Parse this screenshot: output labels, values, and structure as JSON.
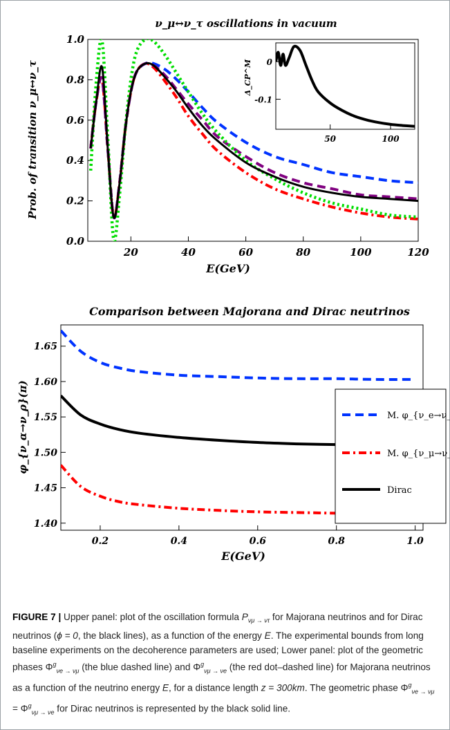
{
  "chart_data": [
    {
      "type": "line",
      "title": "ν_μ↔ν_τ oscillations in vacuum",
      "xlabel": "E(GeV)",
      "ylabel": "Prob. of transition ν_μ↔ν_τ",
      "xlim": [
        5,
        120
      ],
      "ylim": [
        0,
        1
      ],
      "xticks": [
        "20",
        "40",
        "60",
        "80",
        "100",
        "120"
      ],
      "yticks": [
        "0.0",
        "0.2",
        "0.4",
        "0.6",
        "0.8",
        "1.0"
      ],
      "grid": false,
      "series": [
        {
          "color": "#0033ff",
          "style": "dashed",
          "x": [
            6,
            8,
            10,
            12,
            14,
            16,
            18,
            20,
            22,
            25,
            28,
            32,
            36,
            40,
            45,
            50,
            60,
            70,
            80,
            90,
            100,
            110,
            120
          ],
          "y": [
            0.46,
            0.7,
            0.8,
            0.45,
            0.12,
            0.28,
            0.55,
            0.74,
            0.84,
            0.88,
            0.88,
            0.85,
            0.8,
            0.74,
            0.66,
            0.59,
            0.49,
            0.42,
            0.38,
            0.34,
            0.32,
            0.3,
            0.29
          ]
        },
        {
          "color": "#ff0000",
          "style": "dashdot",
          "x": [
            6,
            8,
            10,
            12,
            14,
            16,
            18,
            20,
            22,
            25,
            28,
            32,
            36,
            40,
            45,
            50,
            60,
            70,
            80,
            90,
            100,
            110,
            120
          ],
          "y": [
            0.46,
            0.7,
            0.8,
            0.45,
            0.12,
            0.28,
            0.55,
            0.74,
            0.84,
            0.88,
            0.86,
            0.79,
            0.71,
            0.62,
            0.53,
            0.45,
            0.34,
            0.26,
            0.21,
            0.17,
            0.14,
            0.12,
            0.11
          ]
        },
        {
          "color": "#800080",
          "style": "dashed",
          "x": [
            6,
            8,
            10,
            12,
            14,
            16,
            18,
            20,
            22,
            25,
            28,
            32,
            36,
            40,
            45,
            50,
            60,
            70,
            80,
            90,
            100,
            110,
            120
          ],
          "y": [
            0.46,
            0.7,
            0.8,
            0.45,
            0.12,
            0.28,
            0.55,
            0.74,
            0.84,
            0.88,
            0.87,
            0.82,
            0.75,
            0.68,
            0.6,
            0.52,
            0.42,
            0.34,
            0.29,
            0.26,
            0.23,
            0.22,
            0.21
          ]
        },
        {
          "color": "#00dd00",
          "style": "dotted",
          "x": [
            6,
            8,
            10,
            12,
            14,
            16,
            18,
            20,
            22,
            25,
            28,
            32,
            36,
            40,
            45,
            50,
            60,
            70,
            80,
            90,
            100,
            110,
            120
          ],
          "y": [
            0.35,
            0.8,
            0.99,
            0.5,
            0.01,
            0.22,
            0.55,
            0.8,
            0.94,
            1.0,
            0.99,
            0.92,
            0.83,
            0.74,
            0.63,
            0.54,
            0.4,
            0.31,
            0.24,
            0.19,
            0.16,
            0.13,
            0.12
          ]
        },
        {
          "color": "#000000",
          "style": "solid",
          "x": [
            6,
            8,
            10,
            12,
            14,
            16,
            18,
            20,
            22,
            25,
            28,
            32,
            36,
            40,
            45,
            50,
            60,
            70,
            80,
            90,
            100,
            110,
            120
          ],
          "y": [
            0.46,
            0.7,
            0.86,
            0.45,
            0.12,
            0.28,
            0.55,
            0.74,
            0.84,
            0.88,
            0.87,
            0.81,
            0.74,
            0.66,
            0.57,
            0.5,
            0.39,
            0.32,
            0.27,
            0.24,
            0.22,
            0.21,
            0.2
          ]
        }
      ],
      "inset": {
        "type": "line",
        "ylabel": "Δ_CP^M",
        "xlim": [
          5,
          120
        ],
        "ylim": [
          -0.18,
          0.05
        ],
        "xticks": [
          "50",
          "100"
        ],
        "yticks": [
          "0",
          "-0.1"
        ],
        "series": [
          {
            "color": "#000000",
            "style": "solid",
            "x": [
              5,
              7,
              9,
              11,
              13,
              16,
              20,
              25,
              30,
              35,
              40,
              50,
              60,
              70,
              80,
              90,
              100,
              110,
              120
            ],
            "y": [
              0.0,
              0.025,
              -0.01,
              0.02,
              -0.01,
              0.01,
              0.04,
              0.03,
              -0.01,
              -0.05,
              -0.08,
              -0.11,
              -0.13,
              -0.145,
              -0.155,
              -0.162,
              -0.167,
              -0.17,
              -0.172
            ]
          }
        ]
      }
    },
    {
      "type": "line",
      "title": "Comparison between Majorana and Dirac neutrinos",
      "xlabel": "E(GeV)",
      "ylabel": "φ_{ν_α→ν_ρ}(π)",
      "xlim": [
        0.1,
        1.02
      ],
      "ylim": [
        1.39,
        1.68
      ],
      "xticks": [
        "0.2",
        "0.4",
        "0.6",
        "0.8",
        "1.0"
      ],
      "yticks": [
        "1.40",
        "1.45",
        "1.50",
        "1.55",
        "1.60",
        "1.65"
      ],
      "grid": false,
      "legend": "right",
      "series": [
        {
          "name": "M. φ_{ν_e→ν_μ}",
          "color": "#0033ff",
          "style": "dashed",
          "x": [
            0.1,
            0.15,
            0.2,
            0.25,
            0.3,
            0.4,
            0.5,
            0.6,
            0.7,
            0.8,
            0.9,
            1.0
          ],
          "y": [
            1.672,
            1.643,
            1.627,
            1.619,
            1.614,
            1.609,
            1.607,
            1.605,
            1.604,
            1.604,
            1.603,
            1.603
          ]
        },
        {
          "name": "M. φ_{ν_μ→ν_e}",
          "color": "#ff0000",
          "style": "dashdot",
          "x": [
            0.1,
            0.15,
            0.2,
            0.25,
            0.3,
            0.4,
            0.5,
            0.6,
            0.7,
            0.8,
            0.9,
            1.0
          ],
          "y": [
            1.482,
            1.452,
            1.438,
            1.43,
            1.426,
            1.421,
            1.418,
            1.416,
            1.415,
            1.414,
            1.413,
            1.412
          ]
        },
        {
          "name": "Dirac",
          "color": "#000000",
          "style": "solid",
          "x": [
            0.1,
            0.15,
            0.2,
            0.25,
            0.3,
            0.4,
            0.5,
            0.6,
            0.7,
            0.8,
            0.9,
            1.0
          ],
          "y": [
            1.58,
            1.553,
            1.54,
            1.532,
            1.527,
            1.521,
            1.517,
            1.514,
            1.512,
            1.511,
            1.51,
            1.509
          ]
        }
      ]
    }
  ],
  "caption": {
    "label": "FIGURE 7 |",
    "part1": " Upper panel: plot of the oscillation formula ",
    "p_sym": "P",
    "p_sub": "ν",
    "p_sub2": "μ → ν",
    "p_sub3": "τ",
    "part2": " for Majorana neutrinos and for Dirac neutrinos (",
    "phi_eq": "ϕ = 0",
    "part3": ", the black lines), as a function of the energy ",
    "energy": "E",
    "part4": ". The experimental bounds from long baseline experiments on the decoherence parameters are used; Lower panel: plot of the geometric phases ",
    "phase_a": "Φ",
    "phase_a_sup": "g",
    "phase_a_sub": "νe → νμ",
    "part5": " (the blue dashed line) and ",
    "phase_b": "Φ",
    "phase_b_sup": "g",
    "phase_b_sub": "νμ → νe",
    "part6": " (the red dot–dashed line) for Majorana neutrinos as a function of the neutrino energy ",
    "energy2": "E",
    "part7": ", for a distance length ",
    "dist": "z = 300km",
    "part8": ". The geometric phase ",
    "phase_c": "Φ",
    "phase_c_sup": "g",
    "phase_c_sub": "νe → νμ",
    "eq": " = ",
    "phase_d": "Φ",
    "phase_d_sup": "g",
    "phase_d_sub": "νμ → νe",
    "part9": " for Dirac neutrinos is represented by the black solid line."
  }
}
